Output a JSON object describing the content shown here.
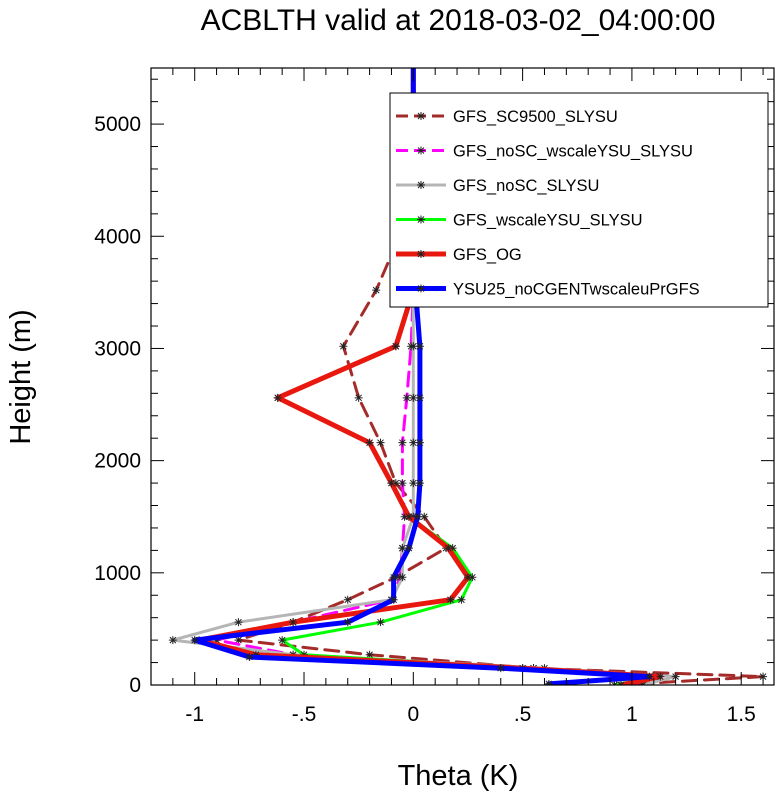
{
  "chart_data": {
    "type": "line",
    "title": "ACBLTH valid at 2018-03-02_04:00:00",
    "xlabel": "Theta (K)",
    "ylabel": "Height (m)",
    "xlim": [
      -1.2,
      1.65
    ],
    "ylim": [
      0,
      5500
    ],
    "xticks": [
      -1,
      -0.5,
      0,
      0.5,
      1,
      1.5
    ],
    "xtick_labels": [
      "-1",
      "-.5",
      "0",
      ".5",
      "1",
      "1.5"
    ],
    "yticks": [
      0,
      1000,
      2000,
      3000,
      4000,
      5000
    ],
    "ytick_labels": [
      "0",
      "1000",
      "2000",
      "3000",
      "4000",
      "5000"
    ],
    "legend_position": "top-right",
    "series": [
      {
        "name": "GFS_SC9500_SLYSU",
        "color": "#a52a2a",
        "dash": "dashed",
        "width": 3,
        "points": [
          [
            0.93,
            0
          ],
          [
            1.6,
            75
          ],
          [
            0.55,
            150
          ],
          [
            -0.2,
            270
          ],
          [
            -0.8,
            400
          ],
          [
            -0.55,
            560
          ],
          [
            -0.3,
            760
          ],
          [
            -0.08,
            960
          ],
          [
            0.15,
            1220
          ],
          [
            0.05,
            1500
          ],
          [
            -0.08,
            1800
          ],
          [
            -0.15,
            2160
          ],
          [
            -0.25,
            2560
          ],
          [
            -0.32,
            3020
          ],
          [
            -0.17,
            3520
          ],
          [
            -0.05,
            4060
          ],
          [
            -0.02,
            4660
          ],
          [
            0,
            5200
          ],
          [
            0,
            5500
          ]
        ]
      },
      {
        "name": "GFS_noSC_wscaleYSU_SLYSU",
        "color": "#ff00ff",
        "dash": "dashed",
        "width": 3,
        "points": [
          [
            1,
            0
          ],
          [
            1.1,
            75
          ],
          [
            0.55,
            150
          ],
          [
            -0.55,
            270
          ],
          [
            -0.9,
            400
          ],
          [
            -0.55,
            560
          ],
          [
            -0.1,
            760
          ],
          [
            -0.06,
            960
          ],
          [
            -0.05,
            1220
          ],
          [
            -0.04,
            1500
          ],
          [
            -0.05,
            1800
          ],
          [
            -0.05,
            2160
          ],
          [
            -0.03,
            2560
          ],
          [
            -0.01,
            3020
          ],
          [
            0,
            3520
          ],
          [
            0,
            4060
          ],
          [
            0,
            4660
          ],
          [
            0,
            5200
          ],
          [
            0,
            5500
          ]
        ]
      },
      {
        "name": "GFS_noSC_SLYSU",
        "color": "#b5b5b5",
        "dash": "solid",
        "width": 3,
        "points": [
          [
            1.05,
            0
          ],
          [
            1.2,
            75
          ],
          [
            0.6,
            150
          ],
          [
            -0.55,
            270
          ],
          [
            -1.1,
            400
          ],
          [
            -0.8,
            560
          ],
          [
            -0.1,
            760
          ],
          [
            -0.05,
            960
          ],
          [
            -0.05,
            1220
          ],
          [
            0,
            1500
          ],
          [
            0,
            1800
          ],
          [
            0,
            2160
          ],
          [
            0,
            2560
          ],
          [
            0,
            3020
          ],
          [
            0,
            3520
          ],
          [
            0,
            4060
          ],
          [
            0,
            4660
          ],
          [
            0,
            5200
          ],
          [
            0,
            5500
          ]
        ]
      },
      {
        "name": "GFS_wscaleYSU_SLYSU",
        "color": "#00ff00",
        "dash": "solid",
        "width": 3,
        "points": [
          [
            0.92,
            0
          ],
          [
            1.1,
            75
          ],
          [
            0.5,
            150
          ],
          [
            -0.5,
            270
          ],
          [
            -0.6,
            400
          ],
          [
            -0.15,
            560
          ],
          [
            0.22,
            760
          ],
          [
            0.27,
            960
          ],
          [
            0.18,
            1220
          ],
          [
            -0.02,
            1500
          ],
          [
            -0.1,
            1800
          ],
          [
            -0.2,
            2160
          ],
          [
            -0.62,
            2560
          ],
          [
            -0.08,
            3020
          ],
          [
            0,
            3520
          ],
          [
            0,
            4060
          ],
          [
            0,
            4660
          ],
          [
            0,
            5200
          ],
          [
            0,
            5500
          ]
        ]
      },
      {
        "name": "GFS_OG",
        "color": "#e8180f",
        "dash": "solid",
        "width": 5,
        "points": [
          [
            0.95,
            0
          ],
          [
            1.13,
            75
          ],
          [
            0.5,
            150
          ],
          [
            -0.72,
            270
          ],
          [
            -0.98,
            400
          ],
          [
            -0.55,
            560
          ],
          [
            0.17,
            760
          ],
          [
            0.25,
            960
          ],
          [
            0.16,
            1220
          ],
          [
            -0.02,
            1500
          ],
          [
            -0.1,
            1800
          ],
          [
            -0.2,
            2160
          ],
          [
            -0.62,
            2560
          ],
          [
            -0.08,
            3020
          ],
          [
            0,
            3520
          ],
          [
            0,
            4060
          ],
          [
            0,
            4660
          ],
          [
            0,
            5200
          ],
          [
            0,
            5500
          ]
        ]
      },
      {
        "name": "YSU25_noCGENTwscaleuPrGFS",
        "color": "#0000ff",
        "dash": "solid",
        "width": 5,
        "points": [
          [
            0.62,
            10
          ],
          [
            1.08,
            75
          ],
          [
            0.4,
            150
          ],
          [
            -0.75,
            250
          ],
          [
            -1,
            400
          ],
          [
            -0.3,
            560
          ],
          [
            -0.09,
            760
          ],
          [
            -0.09,
            960
          ],
          [
            -0.02,
            1220
          ],
          [
            0.02,
            1500
          ],
          [
            0.03,
            1800
          ],
          [
            0.03,
            2160
          ],
          [
            0.03,
            2560
          ],
          [
            0.03,
            3020
          ],
          [
            0.01,
            3520
          ],
          [
            -0.02,
            4060
          ],
          [
            0,
            4660
          ],
          [
            0,
            5200
          ],
          [
            0,
            5500
          ]
        ]
      }
    ]
  }
}
